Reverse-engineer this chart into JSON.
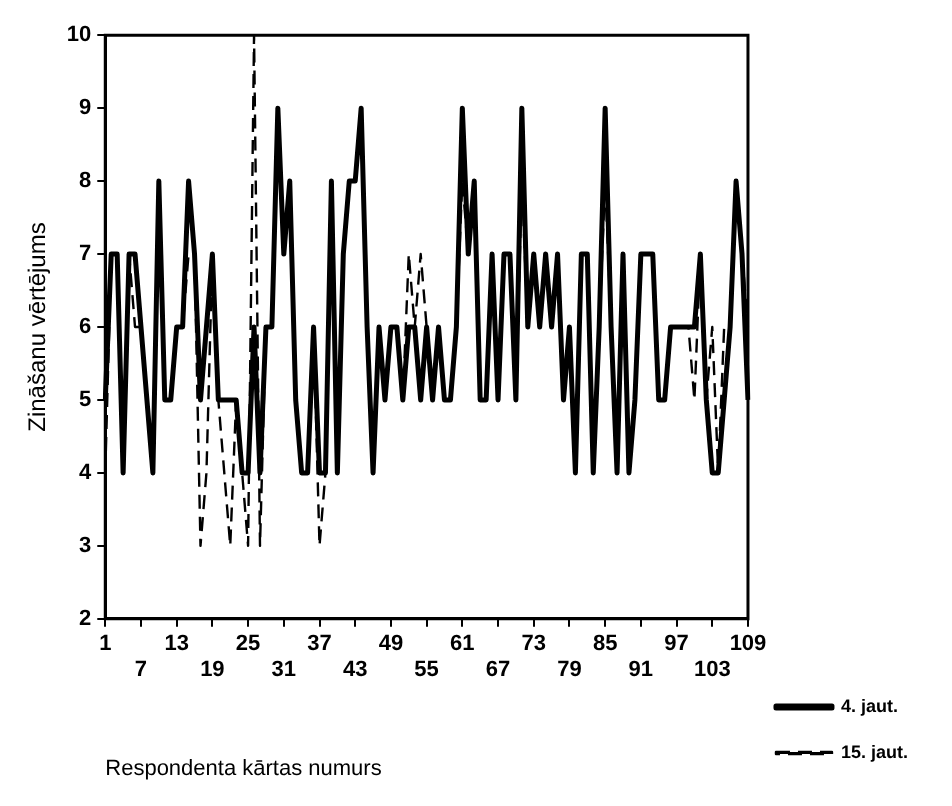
{
  "chart_data": {
    "type": "line",
    "xlabel": "Respondenta kārtas numurs",
    "ylabel": "Zināšanu vērtējums",
    "categories": [
      "1",
      null,
      null,
      null,
      null,
      null,
      "7",
      null,
      null,
      null,
      null,
      null,
      "13",
      null,
      null,
      null,
      null,
      null,
      "19",
      null,
      null,
      null,
      null,
      null,
      "25",
      null,
      null,
      null,
      null,
      null,
      "31",
      null,
      null,
      null,
      null,
      null,
      "37",
      null,
      null,
      null,
      null,
      null,
      "43",
      null,
      null,
      null,
      null,
      null,
      "49",
      null,
      null,
      null,
      null,
      null,
      "55",
      null,
      null,
      null,
      null,
      null,
      "61",
      null,
      null,
      null,
      null,
      null,
      "67",
      null,
      null,
      null,
      null,
      null,
      "73",
      null,
      null,
      null,
      null,
      null,
      "79",
      null,
      null,
      null,
      null,
      null,
      "85",
      null,
      null,
      null,
      null,
      null,
      "91",
      null,
      null,
      null,
      null,
      null,
      "97",
      null,
      null,
      null,
      null,
      null,
      "103",
      null,
      null,
      null,
      null,
      null,
      "109"
    ],
    "series": [
      {
        "name": "4. jaut.",
        "color": "#000000",
        "line_style": "solid",
        "values": [
          5,
          7,
          7,
          4,
          7,
          7,
          6,
          5,
          4,
          8,
          5,
          5,
          6,
          6,
          8,
          7,
          5,
          6,
          7,
          5,
          5,
          5,
          5,
          4,
          4,
          6,
          4,
          6,
          6,
          9,
          7,
          8,
          5,
          4,
          4,
          6,
          4,
          4,
          8,
          4,
          7,
          8,
          8,
          9,
          6,
          4,
          6,
          5,
          6,
          6,
          5,
          6,
          6,
          5,
          6,
          5,
          6,
          5,
          5,
          6,
          9,
          7,
          8,
          5,
          5,
          7,
          5,
          7,
          7,
          5,
          9,
          6,
          7,
          6,
          7,
          6,
          7,
          5,
          6,
          4,
          7,
          7,
          4,
          6,
          9,
          6,
          4,
          7,
          4,
          5,
          7,
          7,
          7,
          5,
          5,
          6,
          6,
          6,
          6,
          6,
          7,
          5,
          4,
          4,
          5,
          6,
          8,
          7,
          5
        ]
      },
      {
        "name": "15. jaut.",
        "color": "#000000",
        "line_style": "dashed",
        "values": [
          4,
          7,
          7,
          4,
          7,
          6,
          6,
          5,
          4,
          8,
          5,
          5,
          6,
          6,
          7,
          7,
          3,
          4,
          7,
          5,
          4,
          3,
          5,
          4,
          3,
          10,
          3,
          6,
          6,
          9,
          7,
          8,
          5,
          4,
          4,
          6,
          3,
          4,
          8,
          4,
          7,
          8,
          8,
          9,
          6,
          4,
          6,
          5,
          6,
          6,
          5,
          7,
          6,
          7,
          6,
          5,
          6,
          5,
          5,
          6,
          8,
          7,
          8,
          5,
          5,
          7,
          5,
          7,
          7,
          5,
          8,
          6,
          7,
          7,
          7,
          6,
          7,
          5,
          6,
          4,
          7,
          7,
          4,
          6,
          8,
          6,
          4,
          7,
          4,
          5,
          7,
          7,
          7,
          5,
          5,
          6,
          6,
          6,
          6,
          5,
          7,
          5,
          6,
          4,
          6,
          6,
          8,
          7,
          6
        ]
      }
    ],
    "ylim": [
      2,
      10
    ],
    "yticks": [
      2,
      3,
      4,
      5,
      6,
      7,
      8,
      9,
      10
    ],
    "grid": false,
    "legend": "bottom right",
    "marker": "none"
  }
}
